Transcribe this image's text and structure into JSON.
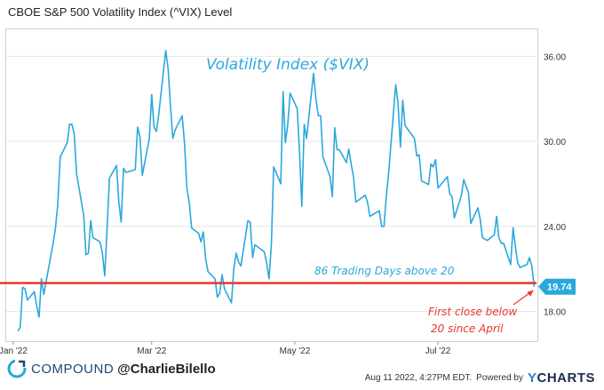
{
  "header": {
    "title": "CBOE S&P 500 Volatility Index (^VIX) Level"
  },
  "footer": {
    "brand": "COMPOUND",
    "handle": "@CharlieBilello",
    "timestamp": "Aug 11 2022, 4:27PM EDT.",
    "powered_by": "Powered by",
    "provider": "CHARTS",
    "provider_initial": "Y"
  },
  "colors": {
    "series": "#2aa8dc",
    "threshold_line": "#e8372c",
    "overlay_text": "#2aa8dc",
    "annotation_text": "#e8372c",
    "brand": "#1a4b7a"
  },
  "chart_data": {
    "type": "line",
    "title": "Volatility Index ($VIX)",
    "y_ticks": [
      "36.00",
      "30.00",
      "24.00",
      "18.00"
    ],
    "x_ticks": [
      {
        "date": "2022-01-01",
        "label": "Jan '22"
      },
      {
        "date": "2022-03-01",
        "label": "Mar '22"
      },
      {
        "date": "2022-05-01",
        "label": "May '22"
      },
      {
        "date": "2022-07-01",
        "label": "Jul '22"
      }
    ],
    "ylim": [
      15.9,
      37.9
    ],
    "xlim": [
      "2021-12-29",
      "2022-08-12"
    ],
    "grid": "horizontal",
    "threshold": 20,
    "last_value_label": "19.74",
    "annotations": {
      "above_count": "86 Trading Days above 20",
      "first_close_line1": "First close below",
      "first_close_line2": "20 since April"
    },
    "series": [
      {
        "x": [
          "2022-01-03",
          "2022-01-04",
          "2022-01-05",
          "2022-01-06",
          "2022-01-07",
          "2022-01-10",
          "2022-01-11",
          "2022-01-12",
          "2022-01-13",
          "2022-01-14",
          "2022-01-18",
          "2022-01-19",
          "2022-01-20",
          "2022-01-21",
          "2022-01-24",
          "2022-01-25",
          "2022-01-26",
          "2022-01-27",
          "2022-01-28",
          "2022-01-31",
          "2022-02-01",
          "2022-02-02",
          "2022-02-03",
          "2022-02-04",
          "2022-02-07",
          "2022-02-08",
          "2022-02-09",
          "2022-02-10",
          "2022-02-11",
          "2022-02-14",
          "2022-02-15",
          "2022-02-16",
          "2022-02-17",
          "2022-02-18",
          "2022-02-22",
          "2022-02-23",
          "2022-02-24",
          "2022-02-25",
          "2022-02-28",
          "2022-03-01",
          "2022-03-02",
          "2022-03-03",
          "2022-03-04",
          "2022-03-07",
          "2022-03-08",
          "2022-03-09",
          "2022-03-10",
          "2022-03-11",
          "2022-03-14",
          "2022-03-15",
          "2022-03-16",
          "2022-03-17",
          "2022-03-18",
          "2022-03-21",
          "2022-03-22",
          "2022-03-23",
          "2022-03-24",
          "2022-03-25",
          "2022-03-28",
          "2022-03-29",
          "2022-03-30",
          "2022-03-31",
          "2022-04-01",
          "2022-04-04",
          "2022-04-05",
          "2022-04-06",
          "2022-04-07",
          "2022-04-08",
          "2022-04-11",
          "2022-04-12",
          "2022-04-13",
          "2022-04-14",
          "2022-04-18",
          "2022-04-19",
          "2022-04-20",
          "2022-04-21",
          "2022-04-22",
          "2022-04-25",
          "2022-04-26",
          "2022-04-27",
          "2022-04-28",
          "2022-04-29",
          "2022-05-02",
          "2022-05-03",
          "2022-05-04",
          "2022-05-05",
          "2022-05-06",
          "2022-05-09",
          "2022-05-10",
          "2022-05-11",
          "2022-05-12",
          "2022-05-13",
          "2022-05-16",
          "2022-05-17",
          "2022-05-18",
          "2022-05-19",
          "2022-05-20",
          "2022-05-23",
          "2022-05-24",
          "2022-05-25",
          "2022-05-26",
          "2022-05-27",
          "2022-05-31",
          "2022-06-01",
          "2022-06-02",
          "2022-06-03",
          "2022-06-06",
          "2022-06-07",
          "2022-06-08",
          "2022-06-09",
          "2022-06-10",
          "2022-06-13",
          "2022-06-14",
          "2022-06-15",
          "2022-06-16",
          "2022-06-17",
          "2022-06-21",
          "2022-06-22",
          "2022-06-23",
          "2022-06-24",
          "2022-06-27",
          "2022-06-28",
          "2022-06-29",
          "2022-06-30",
          "2022-07-01",
          "2022-07-05",
          "2022-07-06",
          "2022-07-07",
          "2022-07-08",
          "2022-07-11",
          "2022-07-12",
          "2022-07-13",
          "2022-07-14",
          "2022-07-15",
          "2022-07-18",
          "2022-07-19",
          "2022-07-20",
          "2022-07-21",
          "2022-07-22",
          "2022-07-25",
          "2022-07-26",
          "2022-07-27",
          "2022-07-28",
          "2022-07-29",
          "2022-08-01",
          "2022-08-02",
          "2022-08-03",
          "2022-08-04",
          "2022-08-05",
          "2022-08-08",
          "2022-08-09",
          "2022-08-10",
          "2022-08-11"
        ],
        "values": [
          16.6,
          16.9,
          19.7,
          19.6,
          18.8,
          19.4,
          18.4,
          17.6,
          20.3,
          19.2,
          22.8,
          23.9,
          25.6,
          28.9,
          29.9,
          31.2,
          31.2,
          30.5,
          27.7,
          24.8,
          22.0,
          22.1,
          24.4,
          23.2,
          22.9,
          22.1,
          20.5,
          23.9,
          27.4,
          28.3,
          25.7,
          24.3,
          28.1,
          27.8,
          28.0,
          31.0,
          30.3,
          27.6,
          30.2,
          33.3,
          31.0,
          30.7,
          31.9,
          36.4,
          35.1,
          32.5,
          30.2,
          30.8,
          31.8,
          29.8,
          26.7,
          25.7,
          23.9,
          23.5,
          22.9,
          23.6,
          21.7,
          20.8,
          20.3,
          19.0,
          19.3,
          20.6,
          19.6,
          18.6,
          21.0,
          22.1,
          21.5,
          21.2,
          24.4,
          24.3,
          21.8,
          22.7,
          22.2,
          21.4,
          20.3,
          22.7,
          28.2,
          27.0,
          33.5,
          29.9,
          31.2,
          33.4,
          32.3,
          29.3,
          25.4,
          31.2,
          30.2,
          34.8,
          32.99,
          31.8,
          31.8,
          28.9,
          27.5,
          26.1,
          30.96,
          29.4,
          29.4,
          28.5,
          29.45,
          28.4,
          27.5,
          25.7,
          26.2,
          25.7,
          24.7,
          24.8,
          25.1,
          24.0,
          24.0,
          26.1,
          27.8,
          34.0,
          32.7,
          29.6,
          32.9,
          31.1,
          30.2,
          28.95,
          29.05,
          27.2,
          26.95,
          28.4,
          28.2,
          28.7,
          26.7,
          27.5,
          26.3,
          26.1,
          24.6,
          26.2,
          27.3,
          26.8,
          26.4,
          24.2,
          25.3,
          24.5,
          23.2,
          23.1,
          23.0,
          23.4,
          24.7,
          23.2,
          22.8,
          22.8,
          21.3,
          23.9,
          22.6,
          21.4,
          21.1,
          21.3,
          21.8,
          21.2,
          19.74
        ]
      }
    ]
  }
}
